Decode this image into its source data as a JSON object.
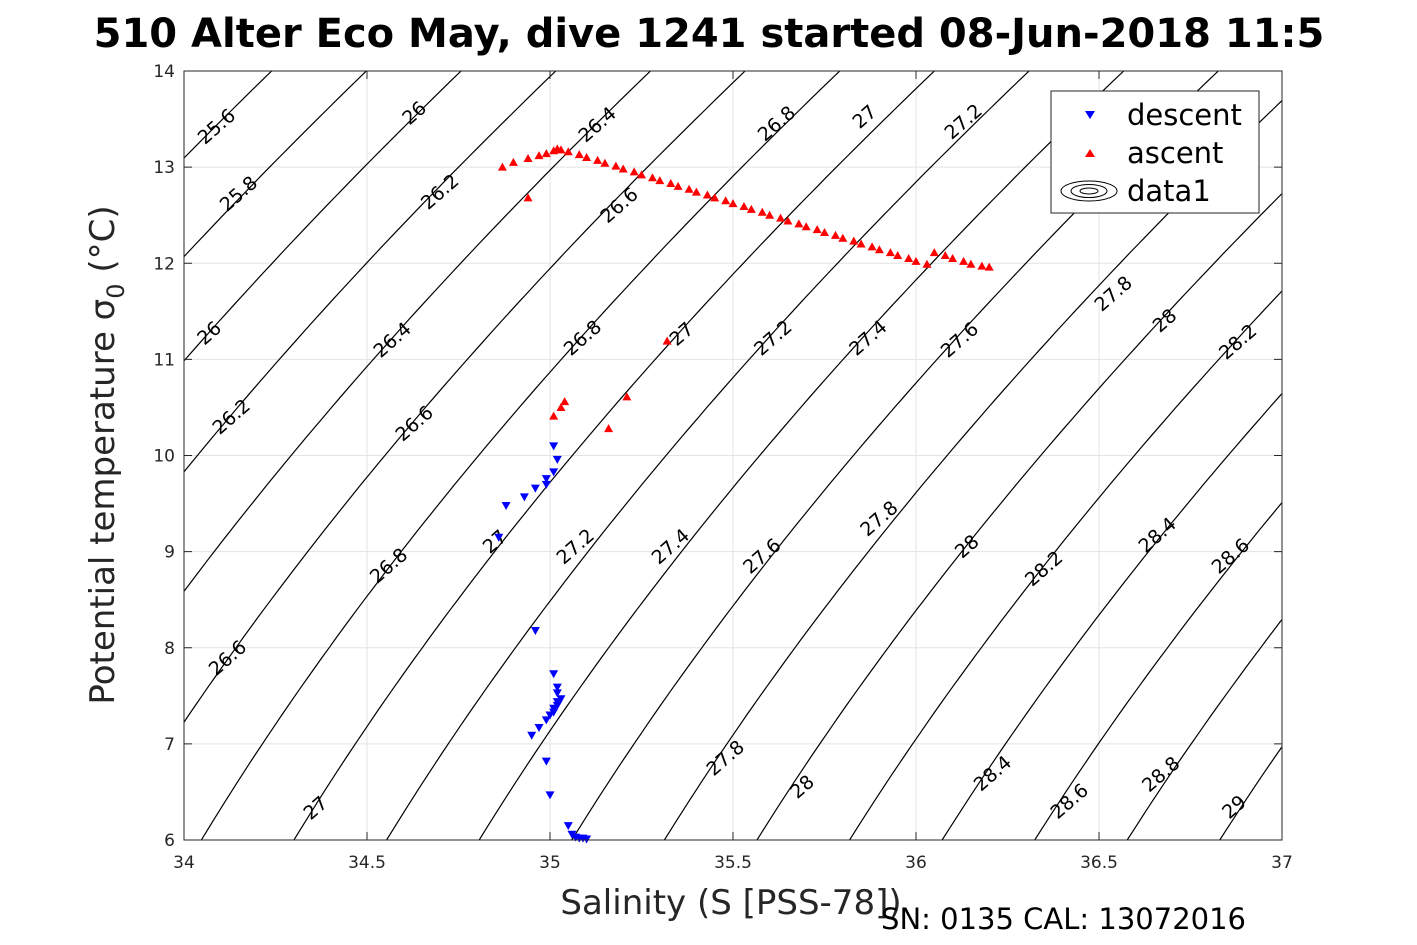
{
  "title": "510 Alter Eco May, dive 1241 started 08-Jun-2018 11:5",
  "footer": "SN: 0135  CAL: 13072016",
  "chart_data": {
    "type": "scatter",
    "title": "510 Alter Eco May, dive 1241 started 08-Jun-2018 11:5",
    "xlabel": "Salinity (S [PSS-78])",
    "ylabel": "Potential temperature σ0 (°C)",
    "xlim": [
      34,
      37
    ],
    "ylim": [
      6,
      14
    ],
    "xticks": [
      "34",
      "34.5",
      "35",
      "35.5",
      "36",
      "36.5",
      "37"
    ],
    "yticks": [
      "6",
      "7",
      "8",
      "9",
      "10",
      "11",
      "12",
      "13",
      "14"
    ],
    "grid": true,
    "legend_position": "top-right",
    "legend": [
      "descent",
      "ascent",
      "data1"
    ],
    "colors": {
      "descent": "#0000ff",
      "ascent": "#ff0000",
      "contour": "#000000",
      "grid": "#e3e3e3"
    },
    "series": [
      {
        "name": "descent",
        "marker": "triangle-down",
        "x": [
          34.86,
          34.88,
          34.93,
          34.96,
          34.99,
          35.01,
          35.02,
          35.01,
          34.99,
          34.96,
          35.01,
          35.02,
          35.02,
          35.03,
          35.02,
          35.02,
          35.01,
          35.01,
          35.0,
          34.99,
          34.97,
          34.95,
          34.99,
          35.0,
          35.05,
          35.06,
          35.07,
          35.08,
          35.09,
          35.1
        ],
        "y": [
          9.15,
          9.48,
          9.57,
          9.66,
          9.7,
          9.83,
          9.96,
          10.1,
          9.76,
          8.18,
          7.73,
          7.59,
          7.53,
          7.47,
          7.44,
          7.4,
          7.37,
          7.33,
          7.3,
          7.25,
          7.17,
          7.09,
          6.82,
          6.47,
          6.15,
          6.06,
          6.03,
          6.02,
          6.02,
          6.01
        ]
      },
      {
        "name": "ascent",
        "marker": "triangle-up",
        "x": [
          34.87,
          34.9,
          34.94,
          34.97,
          34.99,
          35.01,
          35.02,
          35.03,
          35.05,
          35.08,
          35.1,
          35.13,
          35.15,
          35.18,
          35.2,
          35.23,
          35.25,
          35.28,
          35.3,
          35.33,
          35.35,
          35.38,
          35.4,
          35.43,
          35.45,
          35.48,
          35.5,
          35.53,
          35.55,
          35.58,
          35.6,
          35.63,
          35.65,
          35.68,
          35.7,
          35.73,
          35.75,
          35.78,
          35.8,
          35.83,
          35.85,
          35.88,
          35.9,
          35.93,
          35.95,
          35.98,
          36.0,
          36.03,
          36.05,
          36.08,
          36.1,
          36.13,
          36.15,
          36.18,
          36.2,
          34.94,
          35.01,
          35.03,
          35.04,
          35.16,
          35.21,
          35.32
        ],
        "y": [
          13.0,
          13.05,
          13.09,
          13.12,
          13.14,
          13.17,
          13.19,
          13.18,
          13.16,
          13.13,
          13.1,
          13.07,
          13.04,
          13.01,
          12.98,
          12.95,
          12.92,
          12.89,
          12.86,
          12.83,
          12.8,
          12.77,
          12.74,
          12.71,
          12.68,
          12.65,
          12.62,
          12.59,
          12.56,
          12.53,
          12.5,
          12.47,
          12.44,
          12.41,
          12.38,
          12.35,
          12.32,
          12.29,
          12.26,
          12.23,
          12.2,
          12.17,
          12.14,
          12.11,
          12.08,
          12.05,
          12.02,
          11.99,
          12.11,
          12.08,
          12.05,
          12.02,
          11.99,
          11.97,
          11.96,
          12.68,
          10.41,
          10.5,
          10.56,
          10.28,
          10.61,
          11.19
        ]
      }
    ],
    "contours": {
      "name": "data1",
      "levels": [
        25.6,
        25.8,
        26,
        26.2,
        26.4,
        26.6,
        26.8,
        27,
        27.2,
        27.4,
        27.6,
        27.8,
        28,
        28.2,
        28.4,
        28.6,
        28.8,
        29
      ],
      "labels": [
        {
          "text": "25.6",
          "x": 34.09,
          "y": 13.42
        },
        {
          "text": "26",
          "x": 34.63,
          "y": 13.56
        },
        {
          "text": "26.4",
          "x": 35.13,
          "y": 13.44
        },
        {
          "text": "26.8",
          "x": 35.62,
          "y": 13.45
        },
        {
          "text": "27",
          "x": 35.86,
          "y": 13.52
        },
        {
          "text": "27.2",
          "x": 36.13,
          "y": 13.47
        },
        {
          "text": "25.8",
          "x": 34.15,
          "y": 12.72
        },
        {
          "text": "26.2",
          "x": 34.7,
          "y": 12.74
        },
        {
          "text": "26.6",
          "x": 35.19,
          "y": 12.6
        },
        {
          "text": "26",
          "x": 34.07,
          "y": 11.27
        },
        {
          "text": "26.4",
          "x": 34.57,
          "y": 11.2
        },
        {
          "text": "26.8",
          "x": 35.09,
          "y": 11.22
        },
        {
          "text": "27",
          "x": 35.36,
          "y": 11.26
        },
        {
          "text": "27.2",
          "x": 35.61,
          "y": 11.22
        },
        {
          "text": "27.4",
          "x": 35.87,
          "y": 11.22
        },
        {
          "text": "27.6",
          "x": 36.12,
          "y": 11.2
        },
        {
          "text": "27.8",
          "x": 36.54,
          "y": 11.68
        },
        {
          "text": "28",
          "x": 36.68,
          "y": 11.4
        },
        {
          "text": "28.2",
          "x": 36.88,
          "y": 11.18
        },
        {
          "text": "26.2",
          "x": 34.13,
          "y": 10.4
        },
        {
          "text": "26.6",
          "x": 34.63,
          "y": 10.33
        },
        {
          "text": "27",
          "x": 34.85,
          "y": 9.1
        },
        {
          "text": "27.2",
          "x": 35.07,
          "y": 9.05
        },
        {
          "text": "27.4",
          "x": 35.33,
          "y": 9.05
        },
        {
          "text": "27.6",
          "x": 35.58,
          "y": 8.95
        },
        {
          "text": "27.8",
          "x": 35.9,
          "y": 9.34
        },
        {
          "text": "28",
          "x": 36.14,
          "y": 9.05
        },
        {
          "text": "28.2",
          "x": 36.35,
          "y": 8.82
        },
        {
          "text": "28.4",
          "x": 36.66,
          "y": 9.17
        },
        {
          "text": "28.6",
          "x": 36.86,
          "y": 8.95
        },
        {
          "text": "26.8",
          "x": 34.56,
          "y": 8.85
        },
        {
          "text": "26.6",
          "x": 34.12,
          "y": 7.89
        },
        {
          "text": "27.8",
          "x": 35.48,
          "y": 6.85
        },
        {
          "text": "28",
          "x": 35.69,
          "y": 6.55
        },
        {
          "text": "28.4",
          "x": 36.21,
          "y": 6.69
        },
        {
          "text": "28.6",
          "x": 36.42,
          "y": 6.4
        },
        {
          "text": "28.8",
          "x": 36.67,
          "y": 6.68
        },
        {
          "text": "29",
          "x": 36.87,
          "y": 6.34
        },
        {
          "text": "27",
          "x": 34.36,
          "y": 6.33
        }
      ]
    }
  }
}
